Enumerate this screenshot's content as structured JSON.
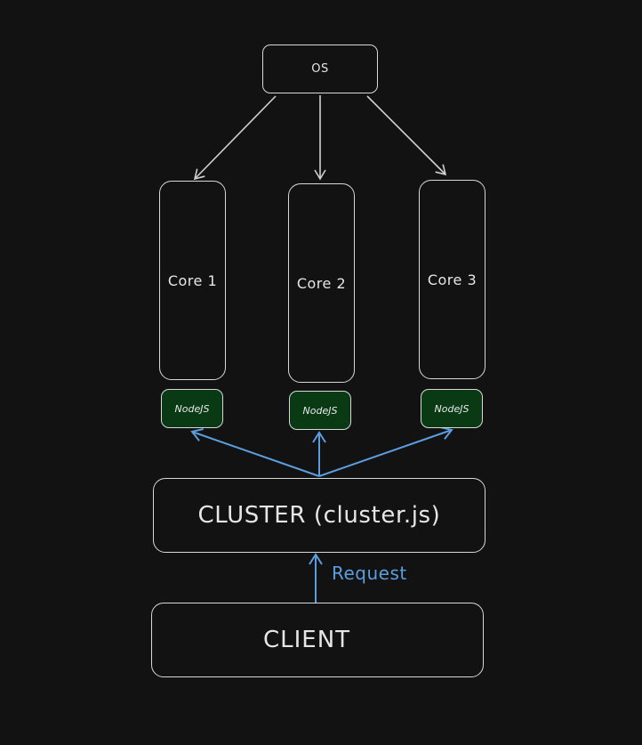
{
  "diagram": {
    "os_label": "OS",
    "cores": [
      {
        "label": "Core 1"
      },
      {
        "label": "Core 2"
      },
      {
        "label": "Core 3"
      }
    ],
    "nodes": [
      {
        "label": "NodeJS"
      },
      {
        "label": "NodeJS"
      },
      {
        "label": "NodeJS"
      }
    ],
    "cluster_label": "CLUSTER (cluster.js)",
    "client_label": "CLIENT",
    "request_label": "Request",
    "colors": {
      "background": "#121212",
      "stroke": "#d8d8d8",
      "node_fill": "#0a3a14",
      "arrow_blue": "#5b9ee0",
      "arrow_gray": "#d0d0d0"
    }
  }
}
